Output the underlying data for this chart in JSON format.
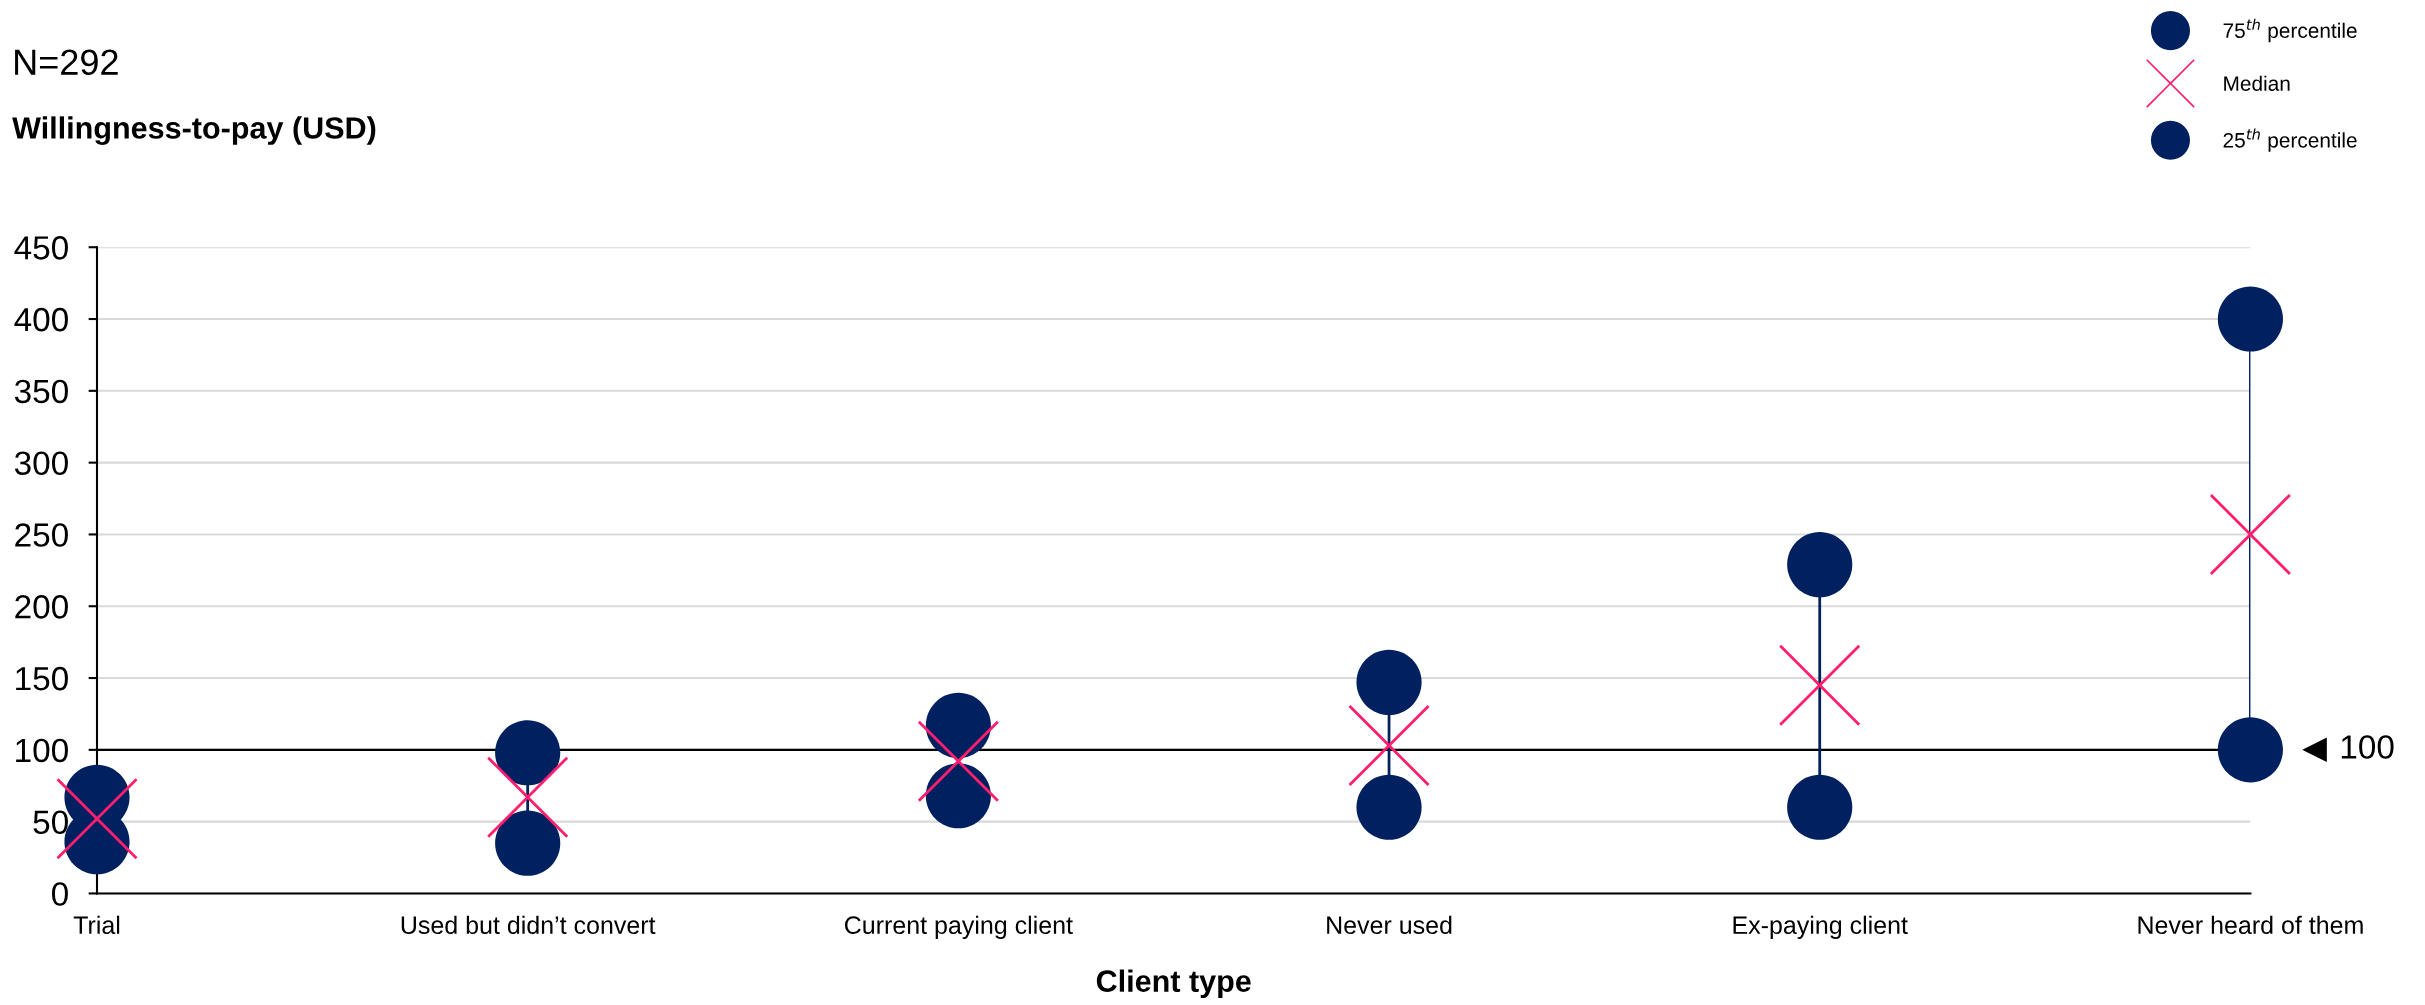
{
  "chart_data": {
    "type": "scatter",
    "subtitle": "N=292",
    "xlabel": "Client type",
    "ylabel": "Willingness-to-pay (USD)",
    "categories": [
      "Trial",
      "Used but didn’t convert",
      "Current paying client",
      "Never used",
      "Ex-paying client",
      "Never heard of them"
    ],
    "series": [
      {
        "name": "75$^{th}$ percentile",
        "color": "#002060",
        "marker": "circle",
        "values": [
          67,
          98,
          117,
          147,
          229,
          400
        ]
      },
      {
        "name": "Median",
        "color": "#ff1f6e",
        "marker": "cross",
        "values": [
          52,
          67,
          92,
          103,
          145,
          250
        ]
      },
      {
        "name": "25$^{th}$ percentile",
        "color": "#002060",
        "marker": "circle",
        "values": [
          36,
          35,
          68,
          60,
          60,
          100
        ]
      }
    ],
    "ylim": [
      0,
      450
    ],
    "yticks": [
      0,
      50,
      100,
      150,
      200,
      250,
      300,
      350,
      400,
      450
    ],
    "grid": "y",
    "legend": "top right",
    "ref_lines": [
      {
        "axis": "y",
        "value": 100,
        "label": "100",
        "color": "#000000"
      }
    ]
  }
}
